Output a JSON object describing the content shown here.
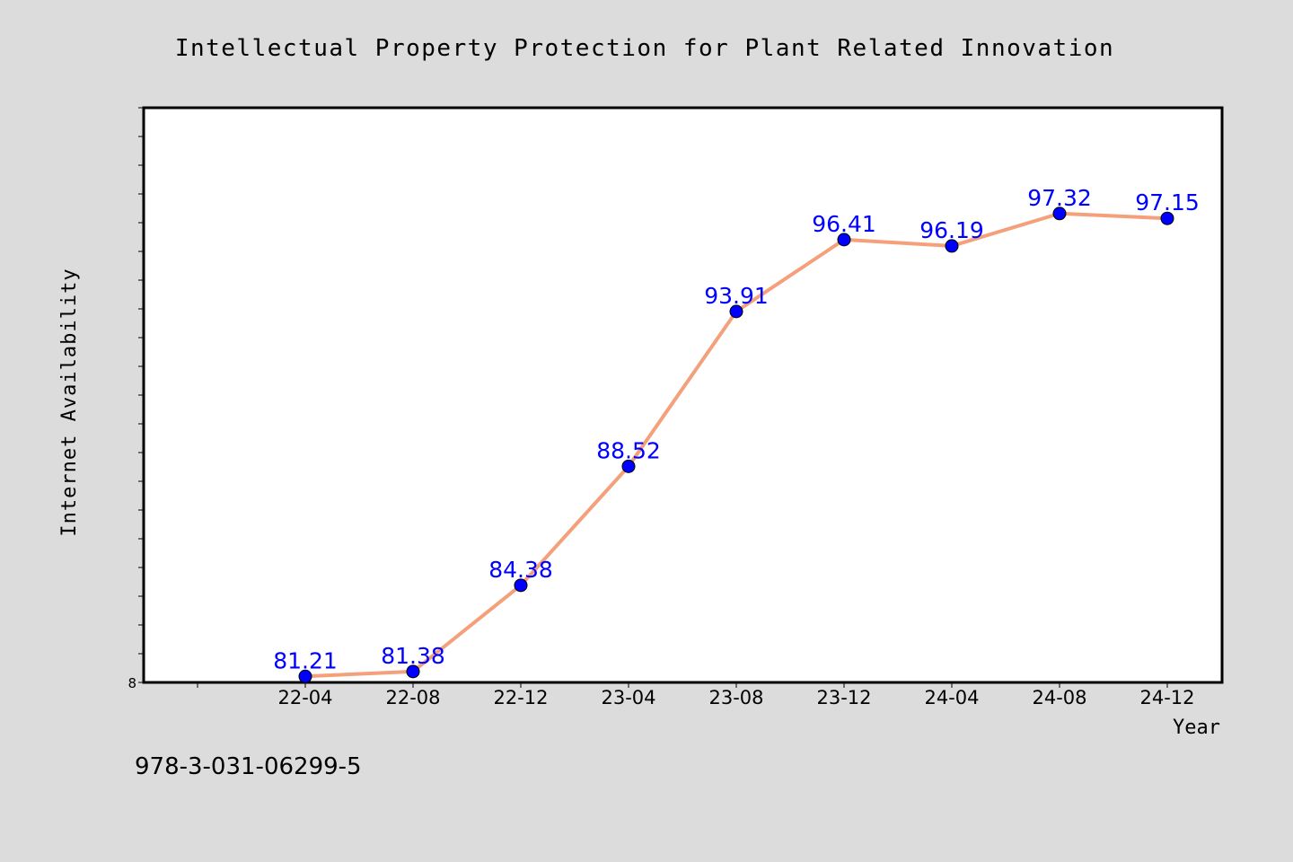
{
  "chart_data": {
    "type": "line",
    "title": "Intellectual Property Protection for Plant Related Innovation",
    "xlabel": "Year",
    "ylabel": "Internet Availability",
    "categories": [
      "22-04",
      "22-08",
      "22-12",
      "23-04",
      "23-08",
      "23-12",
      "24-04",
      "24-08",
      "24-12"
    ],
    "series": [
      {
        "values": [
          81.21,
          81.38,
          84.38,
          88.52,
          93.91,
          96.41,
          96.19,
          97.32,
          97.15
        ]
      }
    ],
    "data_labels": [
      "81.21",
      "81.38",
      "84.38",
      "88.52",
      "93.91",
      "96.41",
      "96.19",
      "97.32",
      "97.15"
    ],
    "y_tick_label": "8",
    "ylim": [
      81,
      101
    ],
    "grid": false,
    "legend": "none",
    "colors": {
      "line": "#f4a07a",
      "marker": "#0000ff",
      "label": "#0000ff",
      "plot_bg": "#ffffff",
      "page_bg": "#dcdcdc"
    }
  },
  "footer": {
    "isbn": "978-3-031-06299-5"
  }
}
